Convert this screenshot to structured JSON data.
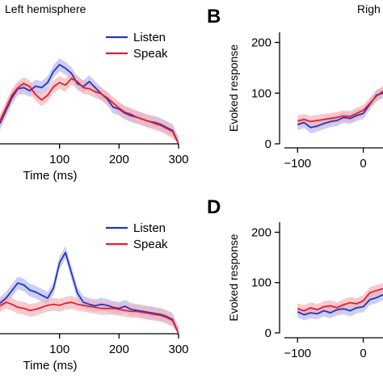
{
  "header": {
    "left_title": "Left hemisphere",
    "right_title": "Righ"
  },
  "panels": {
    "b": "B",
    "d": "D"
  },
  "colors": {
    "listen": "#1f35c8",
    "speak": "#e21f2f",
    "listen_band": "#b7b9ee",
    "speak_band": "#f4b3b8"
  },
  "chart_data": [
    {
      "id": "A",
      "type": "line",
      "xlabel": "Time (ms)",
      "ylabel": "",
      "xlim": [
        0,
        300
      ],
      "ylim": [
        0,
        250
      ],
      "xticks": [
        100,
        200,
        300
      ],
      "yticks": [],
      "legend": {
        "position": "top-right",
        "entries": [
          "Listen",
          "Speak"
        ]
      },
      "series": [
        {
          "name": "Listen",
          "x": [
            0,
            10,
            20,
            30,
            40,
            50,
            60,
            70,
            80,
            90,
            100,
            110,
            120,
            130,
            140,
            150,
            160,
            170,
            180,
            190,
            200,
            210,
            220,
            230,
            240,
            250,
            260,
            270,
            280,
            290,
            300
          ],
          "values": [
            40,
            65,
            90,
            108,
            110,
            104,
            113,
            110,
            120,
            142,
            155,
            148,
            138,
            118,
            112,
            122,
            110,
            98,
            88,
            72,
            68,
            60,
            55,
            52,
            48,
            44,
            42,
            38,
            32,
            26,
            0
          ]
        },
        {
          "name": "Speak",
          "x": [
            0,
            10,
            20,
            30,
            40,
            50,
            60,
            70,
            80,
            90,
            100,
            110,
            120,
            130,
            140,
            150,
            160,
            170,
            180,
            190,
            200,
            210,
            220,
            230,
            240,
            250,
            260,
            270,
            280,
            290,
            300
          ],
          "values": [
            45,
            70,
            95,
            110,
            118,
            112,
            96,
            86,
            95,
            112,
            120,
            115,
            128,
            122,
            110,
            108,
            102,
            98,
            90,
            80,
            70,
            62,
            58,
            52,
            48,
            44,
            40,
            36,
            30,
            24,
            0
          ]
        }
      ]
    },
    {
      "id": "B",
      "type": "line",
      "xlabel": "",
      "ylabel": "Evoked response",
      "xlim": [
        -120,
        30
      ],
      "ylim": [
        0,
        220
      ],
      "xticks": [
        -100,
        0
      ],
      "yticks": [
        0,
        100,
        200
      ],
      "series": [
        {
          "name": "Listen",
          "x": [
            -100,
            -90,
            -80,
            -70,
            -60,
            -50,
            -40,
            -30,
            -20,
            -10,
            0,
            10,
            20,
            30
          ],
          "values": [
            38,
            42,
            32,
            35,
            40,
            44,
            46,
            52,
            50,
            56,
            60,
            78,
            96,
            100
          ]
        },
        {
          "name": "Speak",
          "x": [
            -100,
            -90,
            -80,
            -70,
            -60,
            -50,
            -40,
            -30,
            -20,
            -10,
            0,
            10,
            20,
            30
          ],
          "values": [
            45,
            48,
            44,
            46,
            48,
            50,
            52,
            55,
            54,
            60,
            66,
            80,
            94,
            104
          ]
        }
      ]
    },
    {
      "id": "C",
      "type": "line",
      "xlabel": "Time (ms)",
      "ylabel": "",
      "xlim": [
        0,
        300
      ],
      "ylim": [
        0,
        250
      ],
      "xticks": [
        100,
        200,
        300
      ],
      "yticks": [],
      "legend": {
        "position": "top-right",
        "entries": [
          "Listen",
          "Speak"
        ]
      },
      "series": [
        {
          "name": "Listen",
          "x": [
            0,
            10,
            20,
            30,
            40,
            50,
            60,
            70,
            80,
            90,
            100,
            110,
            120,
            130,
            140,
            150,
            160,
            170,
            180,
            190,
            200,
            210,
            220,
            230,
            240,
            250,
            260,
            270,
            280,
            290,
            300
          ],
          "values": [
            60,
            70,
            85,
            100,
            96,
            86,
            82,
            76,
            70,
            90,
            140,
            160,
            120,
            80,
            62,
            58,
            55,
            58,
            56,
            52,
            50,
            54,
            48,
            46,
            44,
            42,
            40,
            38,
            34,
            28,
            0
          ]
        },
        {
          "name": "Speak",
          "x": [
            0,
            10,
            20,
            30,
            40,
            50,
            60,
            70,
            80,
            90,
            100,
            110,
            120,
            130,
            140,
            150,
            160,
            170,
            180,
            190,
            200,
            210,
            220,
            230,
            240,
            250,
            260,
            270,
            280,
            290,
            300
          ],
          "values": [
            55,
            62,
            58,
            52,
            50,
            46,
            48,
            52,
            56,
            58,
            56,
            60,
            62,
            58,
            56,
            54,
            52,
            50,
            50,
            50,
            48,
            46,
            44,
            44,
            42,
            40,
            38,
            36,
            32,
            26,
            0
          ]
        }
      ]
    },
    {
      "id": "D",
      "type": "line",
      "xlabel": "",
      "ylabel": "Evoked response",
      "xlim": [
        -120,
        30
      ],
      "ylim": [
        0,
        220
      ],
      "xticks": [
        -100,
        0
      ],
      "yticks": [
        0,
        100,
        200
      ],
      "series": [
        {
          "name": "Listen",
          "x": [
            -100,
            -90,
            -80,
            -70,
            -60,
            -50,
            -40,
            -30,
            -20,
            -10,
            0,
            10,
            20,
            30
          ],
          "values": [
            42,
            36,
            40,
            38,
            44,
            40,
            46,
            48,
            44,
            50,
            52,
            66,
            70,
            76
          ]
        },
        {
          "name": "Speak",
          "x": [
            -100,
            -90,
            -80,
            -70,
            -60,
            -50,
            -40,
            -30,
            -20,
            -10,
            0,
            10,
            20,
            30
          ],
          "values": [
            48,
            44,
            50,
            46,
            52,
            54,
            50,
            56,
            60,
            58,
            64,
            80,
            84,
            88
          ]
        }
      ]
    }
  ]
}
